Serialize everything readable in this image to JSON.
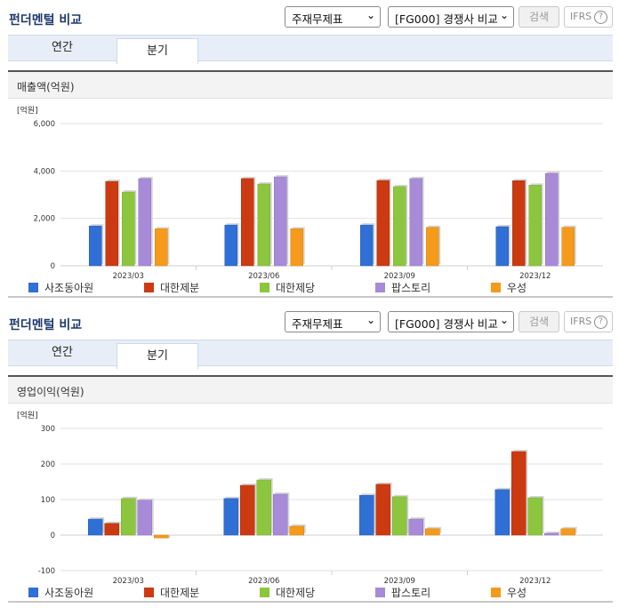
{
  "panels": [
    {
      "title": "펀더멘털 비교",
      "select_item": "주재무제표",
      "select_compare": "[FG000] 경쟁사 비교",
      "search_label": "검색",
      "ifrs_label": "IFRS",
      "help_glyph": "?",
      "tabs": [
        {
          "label": "연간",
          "active": false
        },
        {
          "label": "분기",
          "active": true
        }
      ],
      "chart_title": "매출액(억원)"
    },
    {
      "title": "펀더멘털 비교",
      "select_item": "주재무제표",
      "select_compare": "[FG000] 경쟁사 비교",
      "search_label": "검색",
      "ifrs_label": "IFRS",
      "help_glyph": "?",
      "tabs": [
        {
          "label": "연간",
          "active": false
        },
        {
          "label": "분기",
          "active": true
        }
      ],
      "chart_title": "영업이익(억원)"
    }
  ],
  "chart_data": [
    {
      "type": "bar",
      "title": "매출액(억원)",
      "unit_label": "[억원]",
      "categories": [
        "2023/03",
        "2023/06",
        "2023/09",
        "2023/12"
      ],
      "ylim": [
        0,
        6000
      ],
      "yticks": [
        0,
        2000,
        4000,
        6000
      ],
      "ytick_labels": [
        "0",
        "2,000",
        "4,000",
        "6,000"
      ],
      "grid": true,
      "legend_position": "bottom",
      "series": [
        {
          "name": "사조동아원",
          "color": "#2f6fd6",
          "values": [
            1680,
            1720,
            1720,
            1650
          ]
        },
        {
          "name": "대한제분",
          "color": "#cc3a12",
          "values": [
            3560,
            3680,
            3600,
            3590
          ]
        },
        {
          "name": "대한제당",
          "color": "#8cc63f",
          "values": [
            3110,
            3450,
            3340,
            3400
          ]
        },
        {
          "name": "팝스토리",
          "color": "#a78bd8",
          "values": [
            3680,
            3750,
            3680,
            3900
          ]
        },
        {
          "name": "우성",
          "color": "#f59a1b",
          "values": [
            1560,
            1560,
            1620,
            1620
          ]
        }
      ]
    },
    {
      "type": "bar",
      "title": "영업이익(억원)",
      "unit_label": "[억원]",
      "categories": [
        "2023/03",
        "2023/06",
        "2023/09",
        "2023/12"
      ],
      "ylim": [
        -100,
        300
      ],
      "yticks": [
        -100,
        0,
        100,
        200,
        300
      ],
      "ytick_labels": [
        "-100",
        "0",
        "100",
        "200",
        "300"
      ],
      "grid": true,
      "legend_position": "bottom",
      "series": [
        {
          "name": "사조동아원",
          "color": "#2f6fd6",
          "values": [
            45,
            103,
            112,
            128
          ]
        },
        {
          "name": "대한제분",
          "color": "#cc3a12",
          "values": [
            33,
            140,
            143,
            235
          ]
        },
        {
          "name": "대한제당",
          "color": "#8cc63f",
          "values": [
            103,
            155,
            108,
            105
          ]
        },
        {
          "name": "팝스토리",
          "color": "#a78bd8",
          "values": [
            98,
            115,
            45,
            5
          ]
        },
        {
          "name": "우성",
          "color": "#f59a1b",
          "values": [
            -8,
            25,
            18,
            18
          ]
        }
      ]
    }
  ]
}
